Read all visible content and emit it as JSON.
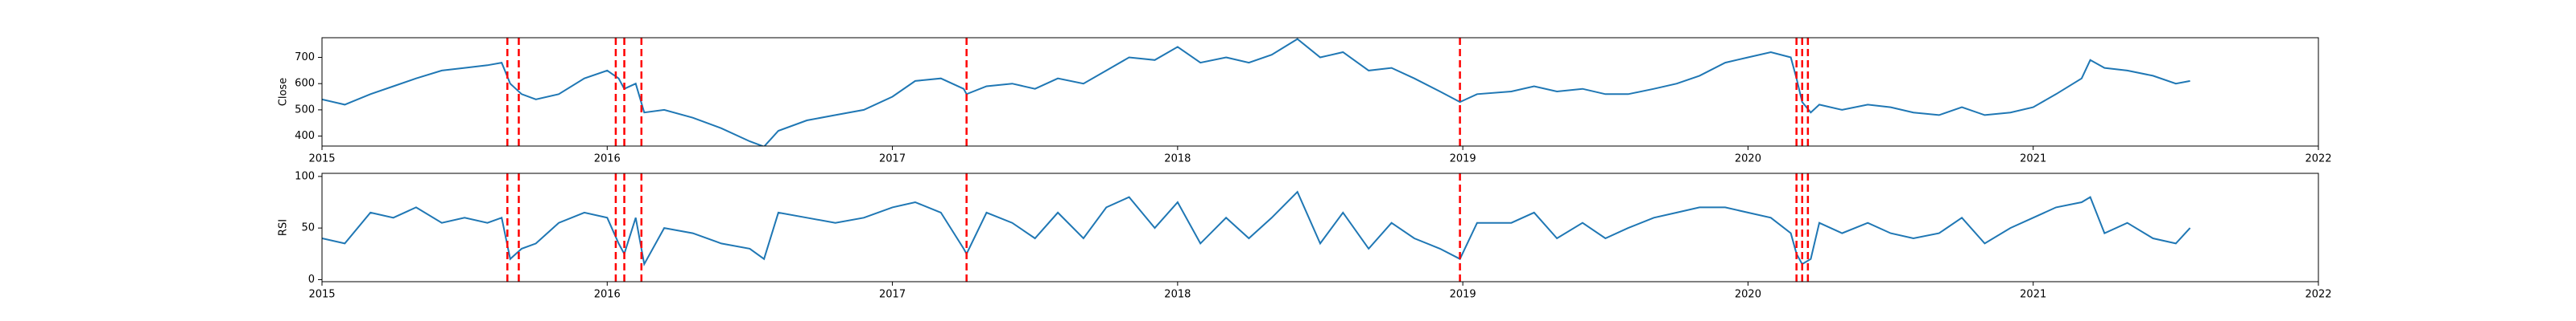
{
  "chart_data": [
    {
      "type": "line",
      "ylabel": "Close",
      "color": "#1f77b4",
      "x": [
        2015.0,
        2015.08,
        2015.17,
        2015.25,
        2015.33,
        2015.42,
        2015.5,
        2015.58,
        2015.63,
        2015.66,
        2015.7,
        2015.75,
        2015.83,
        2015.92,
        2016.0,
        2016.04,
        2016.06,
        2016.1,
        2016.13,
        2016.2,
        2016.3,
        2016.4,
        2016.5,
        2016.55,
        2016.6,
        2016.7,
        2016.8,
        2016.9,
        2017.0,
        2017.08,
        2017.17,
        2017.25,
        2017.26,
        2017.33,
        2017.42,
        2017.5,
        2017.58,
        2017.67,
        2017.75,
        2017.83,
        2017.92,
        2018.0,
        2018.08,
        2018.17,
        2018.25,
        2018.33,
        2018.42,
        2018.5,
        2018.58,
        2018.67,
        2018.75,
        2018.83,
        2018.92,
        2018.99,
        2019.05,
        2019.17,
        2019.25,
        2019.33,
        2019.42,
        2019.5,
        2019.58,
        2019.67,
        2019.75,
        2019.83,
        2019.92,
        2020.0,
        2020.08,
        2020.15,
        2020.17,
        2020.19,
        2020.22,
        2020.25,
        2020.33,
        2020.42,
        2020.5,
        2020.58,
        2020.67,
        2020.75,
        2020.83,
        2020.92,
        2021.0,
        2021.08,
        2021.17,
        2021.2,
        2021.25,
        2021.33,
        2021.42,
        2021.5,
        2021.55
      ],
      "values": [
        540,
        520,
        560,
        590,
        620,
        650,
        660,
        670,
        680,
        600,
        560,
        540,
        560,
        620,
        650,
        620,
        580,
        600,
        490,
        500,
        470,
        430,
        380,
        360,
        420,
        460,
        480,
        500,
        550,
        610,
        620,
        580,
        560,
        590,
        600,
        580,
        620,
        600,
        650,
        700,
        690,
        740,
        680,
        700,
        680,
        710,
        770,
        700,
        720,
        650,
        660,
        620,
        570,
        530,
        560,
        570,
        590,
        570,
        580,
        560,
        560,
        580,
        600,
        630,
        680,
        700,
        720,
        700,
        620,
        530,
        490,
        520,
        500,
        520,
        510,
        490,
        480,
        510,
        480,
        490,
        510,
        560,
        620,
        690,
        660,
        650,
        630,
        600,
        610
      ],
      "vlines": [
        2015.65,
        2015.69,
        2016.03,
        2016.06,
        2016.12,
        2017.26,
        2018.99,
        2020.17,
        2020.19,
        2020.21
      ],
      "vline_color": "#ff0000",
      "xlim": [
        2015,
        2022
      ],
      "xticks": [
        2015,
        2016,
        2017,
        2018,
        2019,
        2020,
        2021,
        2022
      ],
      "ylim": [
        362,
        775
      ],
      "yticks": [
        400,
        500,
        600,
        700
      ]
    },
    {
      "type": "line",
      "ylabel": "RSI",
      "color": "#1f77b4",
      "x": [
        2015.0,
        2015.08,
        2015.17,
        2015.25,
        2015.33,
        2015.42,
        2015.5,
        2015.58,
        2015.63,
        2015.66,
        2015.7,
        2015.75,
        2015.83,
        2015.92,
        2016.0,
        2016.04,
        2016.06,
        2016.1,
        2016.13,
        2016.2,
        2016.3,
        2016.4,
        2016.5,
        2016.55,
        2016.6,
        2016.7,
        2016.8,
        2016.9,
        2017.0,
        2017.08,
        2017.17,
        2017.25,
        2017.26,
        2017.33,
        2017.42,
        2017.5,
        2017.58,
        2017.67,
        2017.75,
        2017.83,
        2017.92,
        2018.0,
        2018.08,
        2018.17,
        2018.25,
        2018.33,
        2018.42,
        2018.5,
        2018.58,
        2018.67,
        2018.75,
        2018.83,
        2018.92,
        2018.99,
        2019.05,
        2019.17,
        2019.25,
        2019.33,
        2019.42,
        2019.5,
        2019.58,
        2019.67,
        2019.75,
        2019.83,
        2019.92,
        2020.0,
        2020.08,
        2020.15,
        2020.17,
        2020.19,
        2020.22,
        2020.25,
        2020.33,
        2020.42,
        2020.5,
        2020.58,
        2020.67,
        2020.75,
        2020.83,
        2020.92,
        2021.0,
        2021.08,
        2021.17,
        2021.2,
        2021.25,
        2021.33,
        2021.42,
        2021.5,
        2021.55
      ],
      "values": [
        40,
        35,
        65,
        60,
        70,
        55,
        60,
        55,
        60,
        20,
        30,
        35,
        55,
        65,
        60,
        35,
        25,
        60,
        15,
        50,
        45,
        35,
        30,
        20,
        65,
        60,
        55,
        60,
        70,
        75,
        65,
        30,
        25,
        65,
        55,
        40,
        65,
        40,
        70,
        80,
        50,
        75,
        35,
        60,
        40,
        60,
        85,
        35,
        65,
        30,
        55,
        40,
        30,
        20,
        55,
        55,
        65,
        40,
        55,
        40,
        50,
        60,
        65,
        70,
        70,
        65,
        60,
        45,
        25,
        15,
        20,
        55,
        45,
        55,
        45,
        40,
        45,
        60,
        35,
        50,
        60,
        70,
        75,
        80,
        45,
        55,
        40,
        35,
        50
      ],
      "vlines": [
        2015.65,
        2015.69,
        2016.03,
        2016.06,
        2016.12,
        2017.26,
        2018.99,
        2020.17,
        2020.19,
        2020.21
      ],
      "vline_color": "#ff0000",
      "xlim": [
        2015,
        2022
      ],
      "xticks": [
        2015,
        2016,
        2017,
        2018,
        2019,
        2020,
        2021,
        2022
      ],
      "ylim": [
        -2,
        103
      ],
      "yticks": [
        0,
        50,
        100
      ]
    }
  ]
}
